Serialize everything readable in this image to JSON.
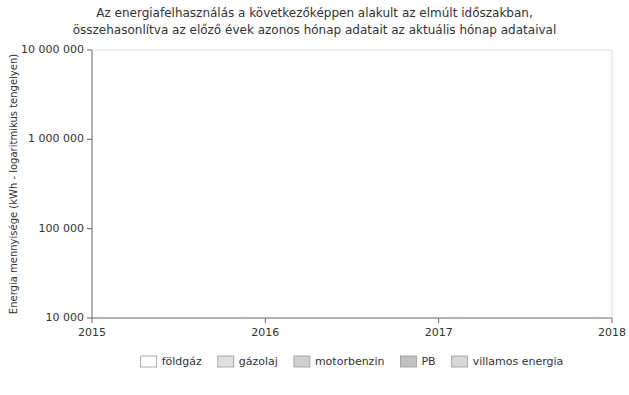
{
  "chart_data": {
    "type": "bar",
    "title": "Az energiafelhasználás a következőképpen alakult az elmúlt időszakban,",
    "subtitle": "összehasonlítva az előző évek azonos hónap adatait az aktuális hónap adataival",
    "y_label": "Energia mennyisége (kWh - logaritmikus tengelyen)",
    "log": "y",
    "xlim": [
      2015.0,
      2018.0
    ],
    "ylim": [
      10000,
      10000000
    ],
    "xticks": [
      2015,
      2016,
      2017,
      2018
    ],
    "yticks": [
      {
        "value": 10000,
        "label": "10 000"
      },
      {
        "value": 100000,
        "label": "100 000"
      },
      {
        "value": 1000000,
        "label": "1 000 000"
      },
      {
        "value": 10000000,
        "label": "10 000 000"
      }
    ],
    "grid": false,
    "legend": "bottom",
    "series": [
      {
        "name": "földgáz",
        "color": "#ffffff"
      },
      {
        "name": "gázolaj",
        "color": "#e0e0e0"
      },
      {
        "name": "motorbenzin",
        "color": "#d0d0d0"
      },
      {
        "name": "PB",
        "color": "#c0c0c0"
      },
      {
        "name": "villamos energia",
        "color": "#d8d8d8"
      }
    ]
  }
}
